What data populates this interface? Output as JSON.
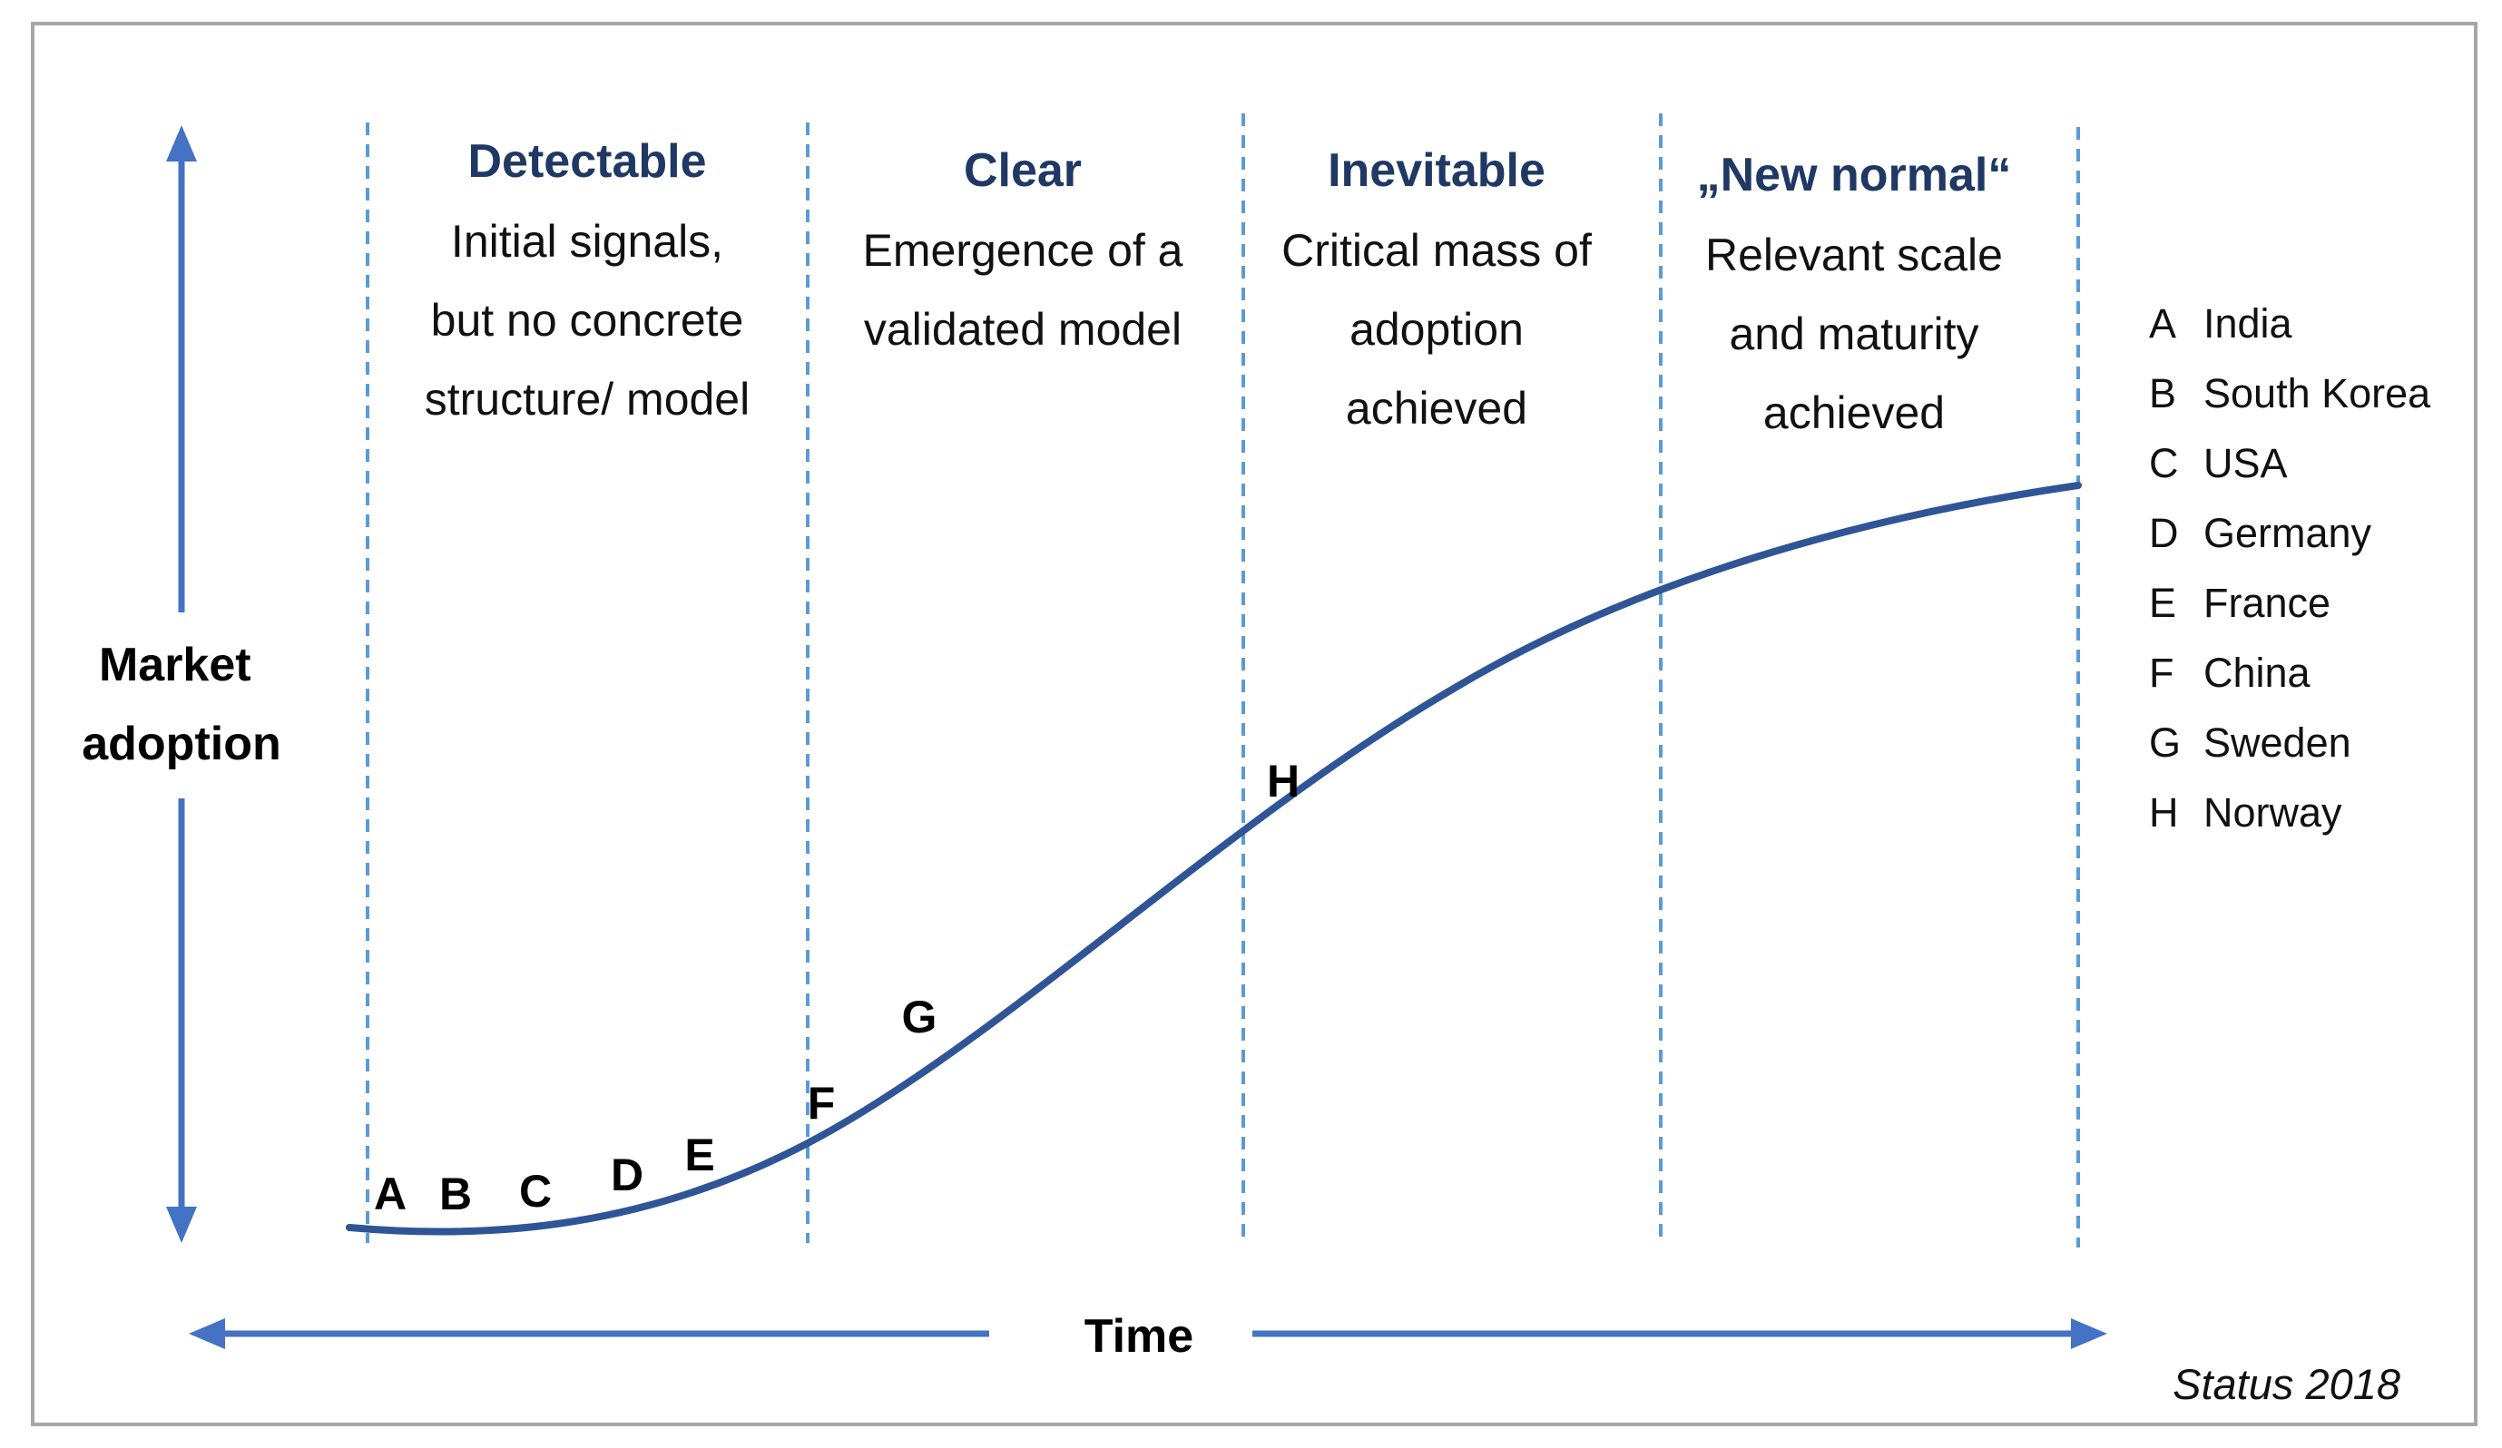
{
  "phases": [
    {
      "title": "Detectable",
      "lines": [
        "Initial signals,",
        "but no concrete",
        "structure/ model"
      ]
    },
    {
      "title": "Clear",
      "lines": [
        "Emergence of a",
        "validated model"
      ]
    },
    {
      "title": "Inevitable",
      "lines": [
        "Critical mass of",
        "adoption",
        "achieved"
      ]
    },
    {
      "title": "„New normal“",
      "lines": [
        "Relevant scale",
        "and maturity",
        "achieved"
      ]
    }
  ],
  "y_axis_label": [
    "Market",
    "adoption"
  ],
  "x_axis_label": "Time",
  "curve_points": [
    "A",
    "B",
    "C",
    "D",
    "E",
    "F",
    "G",
    "H"
  ],
  "legend": [
    {
      "key": "A",
      "country": "India"
    },
    {
      "key": "B",
      "country": "South Korea"
    },
    {
      "key": "C",
      "country": "USA"
    },
    {
      "key": "D",
      "country": "Germany"
    },
    {
      "key": "E",
      "country": "France"
    },
    {
      "key": "F",
      "country": "China"
    },
    {
      "key": "G",
      "country": "Sweden"
    },
    {
      "key": "H",
      "country": "Norway"
    }
  ],
  "status": "Status 2018",
  "colors": {
    "curve": "#2f5597",
    "axis_arrows": "#4472c4",
    "divider": "#5b9bd5",
    "phase_title": "#1f3864",
    "frame": "#a6a6a6"
  }
}
